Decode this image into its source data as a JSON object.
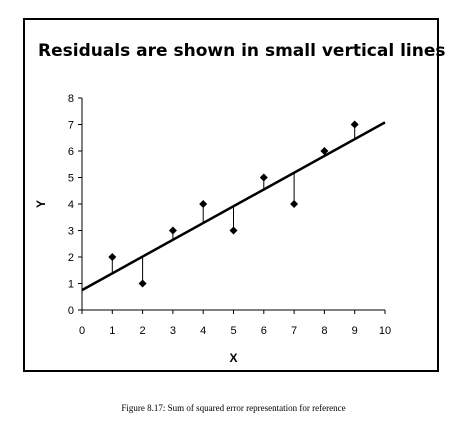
{
  "chart_data": {
    "type": "scatter",
    "title": "Residuals are shown in small vertical lines",
    "xlabel": "X",
    "ylabel": "Y",
    "xlim": [
      0,
      10
    ],
    "ylim": [
      0,
      8
    ],
    "xticks": [
      0,
      1,
      2,
      3,
      4,
      5,
      6,
      7,
      8,
      9,
      10
    ],
    "yticks": [
      0,
      1,
      2,
      3,
      4,
      5,
      6,
      7,
      8
    ],
    "grid": false,
    "legend": "none",
    "points": {
      "x": [
        1,
        2,
        3,
        4,
        5,
        6,
        7,
        8,
        9
      ],
      "y": [
        2,
        1,
        3,
        4,
        3,
        5,
        4,
        6,
        7
      ]
    },
    "fit_line": {
      "intercept": 0.75,
      "slope": 0.633
    },
    "colors": {
      "points": "#000000",
      "fit_line": "#000000",
      "residuals": "#000000"
    }
  },
  "caption": "Figure 8.17: Sum of squared error representation for reference"
}
